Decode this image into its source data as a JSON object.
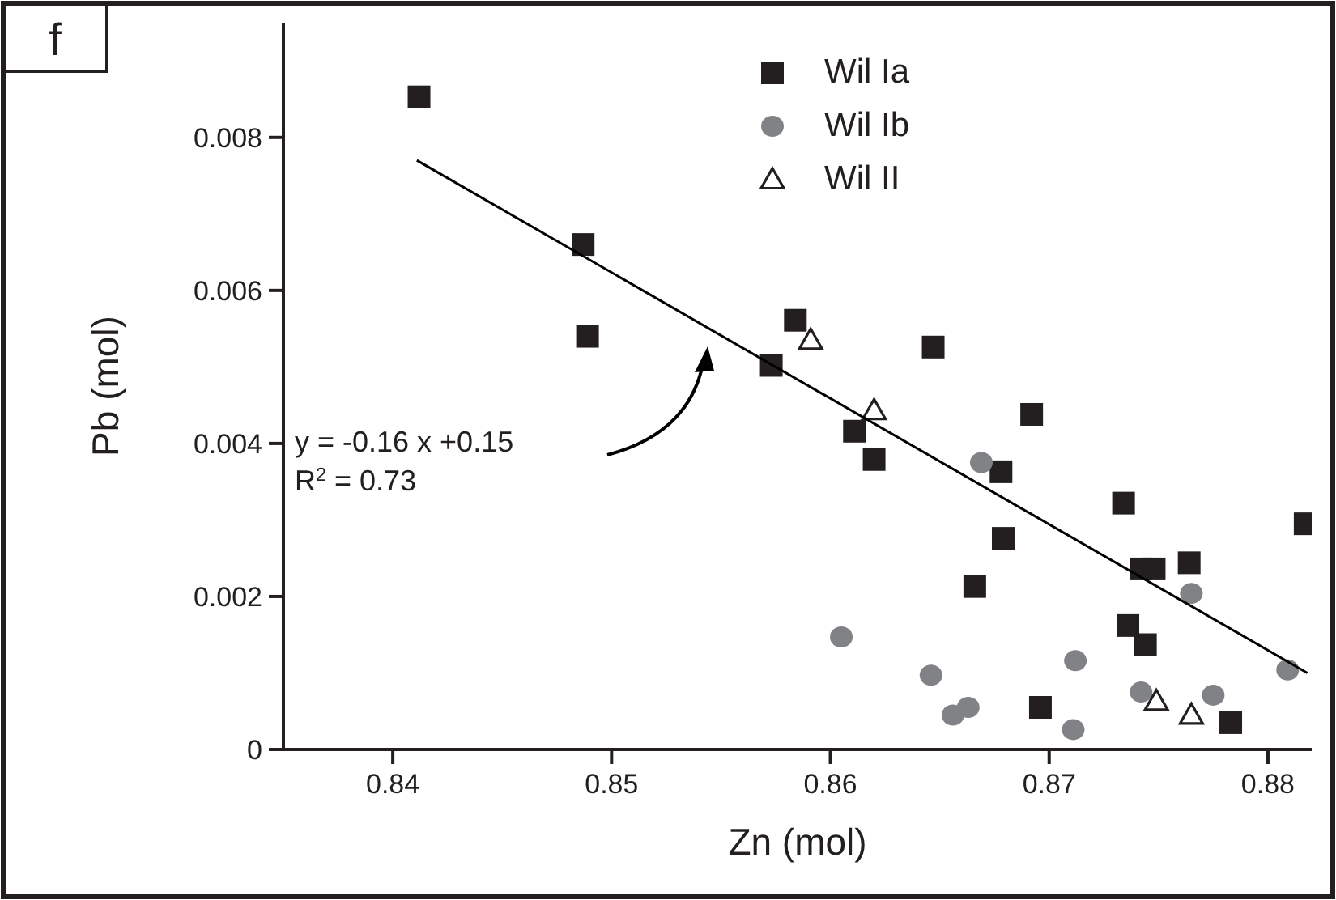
{
  "chart_data": {
    "type": "scatter",
    "xlabel": "Zn (mol)",
    "ylabel": "Pb (mol)",
    "xlim": [
      0.835,
      0.882
    ],
    "xticks": [
      0.84,
      0.85,
      0.86,
      0.87,
      0.88
    ],
    "ylim": [
      0,
      0.0095
    ],
    "yticks": [
      0,
      0.002,
      0.004,
      0.006,
      0.008
    ],
    "legend": "top",
    "annotations": [
      "f",
      "y = -0.16 x +0.15",
      "R$^{2}$ = 0.73"
    ],
    "series": [
      {
        "name": "Wil Ia",
        "color": "#231f20",
        "marker": "square",
        "x": [
          0.8412,
          0.8487,
          0.8489,
          0.8573,
          0.8584,
          0.8647,
          0.8611,
          0.862,
          0.8692,
          0.8678,
          0.8679,
          0.8666,
          0.8734,
          0.8742,
          0.8748,
          0.8764,
          0.8817,
          0.8736,
          0.8744,
          0.8696,
          0.8783
        ],
        "values": [
          0.00853,
          0.0066,
          0.0054,
          0.00502,
          0.00561,
          0.00526,
          0.00416,
          0.00379,
          0.00438,
          0.00363,
          0.00276,
          0.00213,
          0.00322,
          0.00236,
          0.00236,
          0.00244,
          0.00295,
          0.00162,
          0.00137,
          0.00055,
          0.00035
        ]
      },
      {
        "name": "Wil Ib",
        "color": "#808285",
        "marker": "circle",
        "x": [
          0.8669,
          0.8605,
          0.8646,
          0.8656,
          0.8663,
          0.8712,
          0.8711,
          0.8765,
          0.8742,
          0.8775,
          0.8809
        ],
        "values": [
          0.00375,
          0.00147,
          0.00097,
          0.00045,
          0.00055,
          0.00116,
          0.00026,
          0.00204,
          0.00075,
          0.00071,
          0.00104
        ]
      },
      {
        "name": "Wil II",
        "color": "#231f20",
        "marker": "triangle",
        "x": [
          0.8591,
          0.862,
          0.8749,
          0.8765
        ],
        "values": [
          0.00535,
          0.00443,
          0.00063,
          0.00045
        ]
      },
      {
        "type": "line",
        "color": "#000000",
        "marker": "none",
        "line_style": "solid",
        "x": [
          0.8411,
          0.8818
        ],
        "values": [
          0.0077,
          0.001
        ]
      }
    ]
  }
}
